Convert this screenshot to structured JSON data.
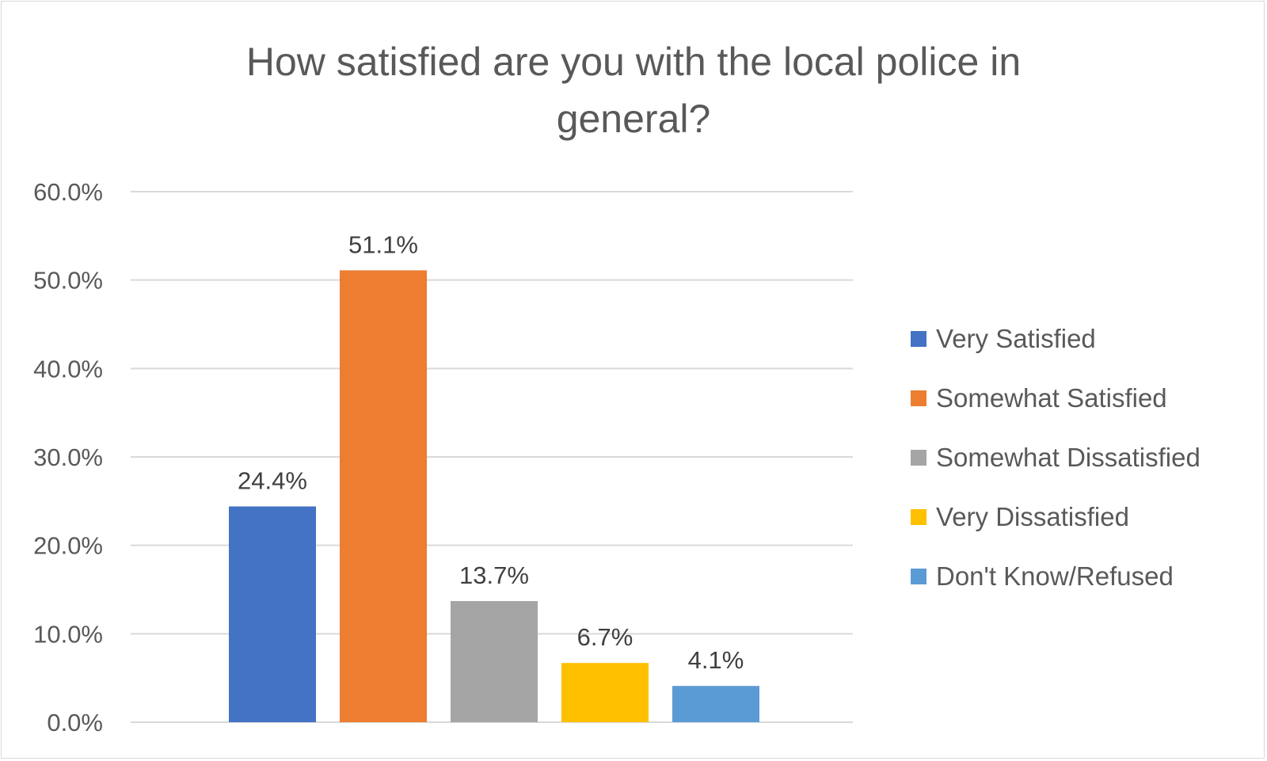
{
  "chart_data": {
    "type": "bar",
    "title": "How satisfied are you with the local police in general?",
    "title_lines": [
      "How satisfied are you with the local police in",
      "general?"
    ],
    "categories": [
      "Very Satisfied",
      "Somewhat Satisfied",
      "Somewhat Dissatisfied",
      "Very Dissatisfied",
      "Don't Know/Refused"
    ],
    "values": [
      24.4,
      51.1,
      13.7,
      6.7,
      4.1
    ],
    "data_labels": [
      "24.4%",
      "51.1%",
      "13.7%",
      "6.7%",
      "4.1%"
    ],
    "colors": [
      "#4472C4",
      "#ED7D31",
      "#A5A5A5",
      "#FFC000",
      "#5B9BD5"
    ],
    "xlabel": "",
    "ylabel": "",
    "ylim": [
      0,
      60
    ],
    "yticks": [
      0,
      10,
      20,
      30,
      40,
      50,
      60
    ],
    "ytick_labels": [
      "0.0%",
      "10.0%",
      "20.0%",
      "30.0%",
      "40.0%",
      "50.0%",
      "60.0%"
    ],
    "grid": true,
    "gridline_color": "#d9d9d9",
    "legend_position": "right",
    "legend": [
      "Very Satisfied",
      "Somewhat Satisfied",
      "Somewhat Dissatisfied",
      "Very Dissatisfied",
      "Don't Know/Refused"
    ]
  }
}
